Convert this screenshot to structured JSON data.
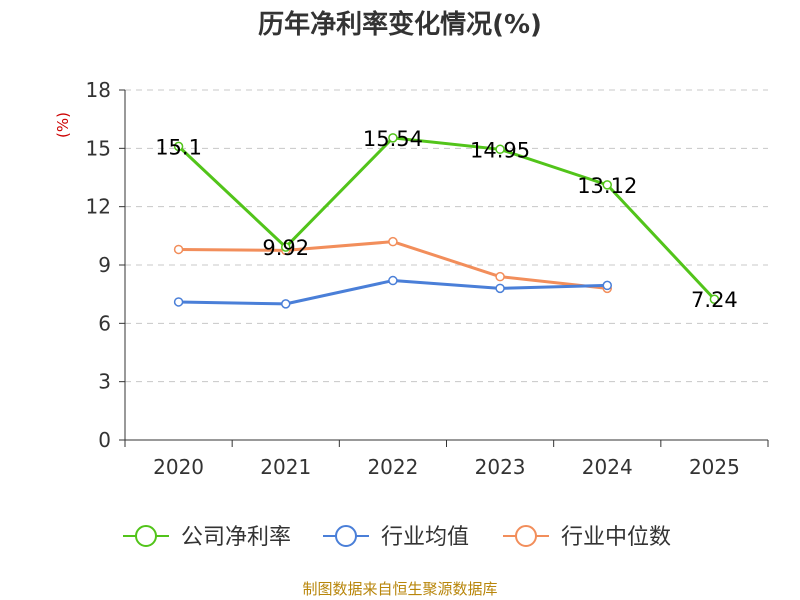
{
  "chart_data": {
    "type": "line",
    "title": "历年净利率变化情况(%)",
    "ylabel": "(%)",
    "ylim": [
      0,
      18
    ],
    "yticks": [
      0,
      3,
      6,
      9,
      12,
      15,
      18
    ],
    "categories": [
      "2020",
      "2021",
      "2022",
      "2023",
      "2024",
      "2025"
    ],
    "grid": true,
    "legend_position": "bottom",
    "series": [
      {
        "name": "公司净利率",
        "color": "#52c41a",
        "values": [
          15.1,
          9.92,
          15.54,
          14.95,
          13.12,
          7.24
        ],
        "labels": [
          "15.1",
          "9.92",
          "15.54",
          "14.95",
          "13.12",
          "7.24"
        ],
        "show_labels": true
      },
      {
        "name": "行业均值",
        "color": "#4a7fd8",
        "values": [
          7.1,
          7.0,
          8.2,
          7.8,
          7.95,
          null
        ],
        "show_labels": false
      },
      {
        "name": "行业中位数",
        "color": "#f28e5b",
        "values": [
          9.8,
          9.75,
          10.2,
          8.4,
          7.8,
          null
        ],
        "show_labels": false
      }
    ]
  },
  "source": "制图数据来自恒生聚源数据库"
}
